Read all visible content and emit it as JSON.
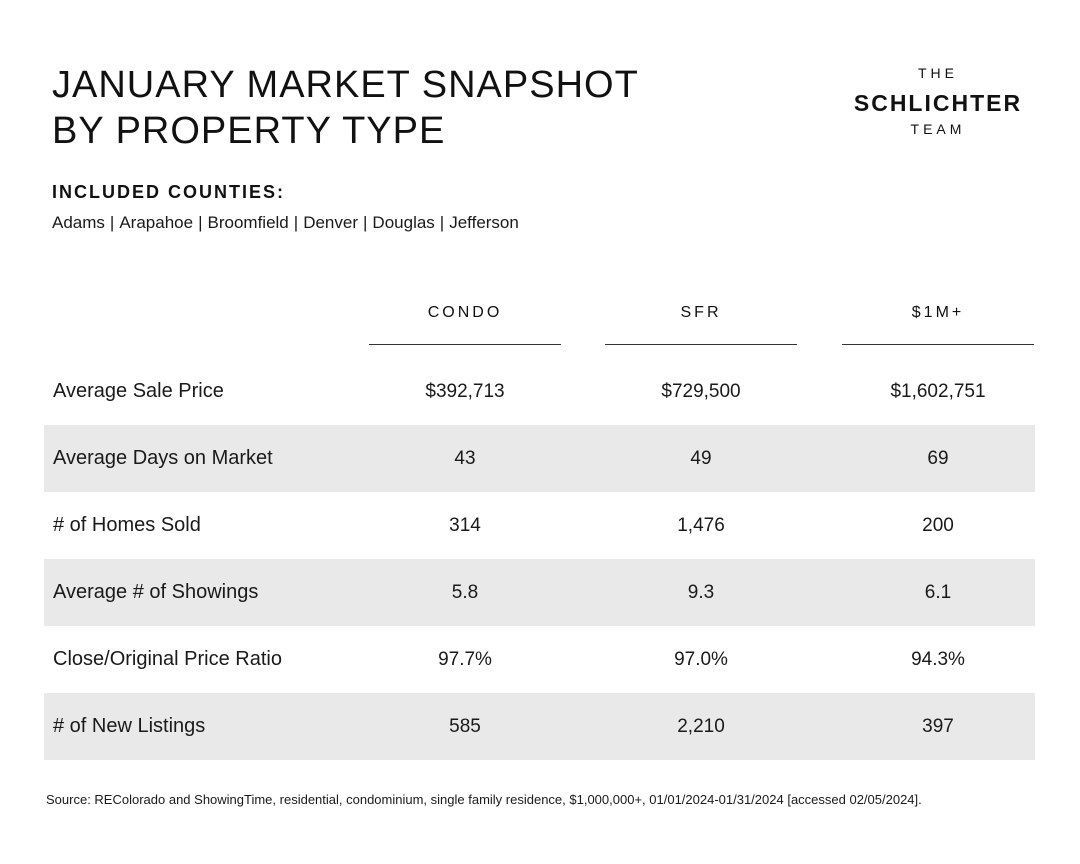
{
  "title": {
    "line1": "JANUARY MARKET SNAPSHOT",
    "line2": "BY PROPERTY TYPE"
  },
  "logo": {
    "the": "THE",
    "name": "SCHLICHTER",
    "team": "TEAM"
  },
  "counties": {
    "heading": "INCLUDED COUNTIES:",
    "items": [
      "Adams",
      "Arapahoe",
      "Broomfield",
      "Denver",
      "Douglas",
      "Jefferson"
    ],
    "separator": "|"
  },
  "table": {
    "columns": [
      "CONDO",
      "SFR",
      "$1M+"
    ],
    "rows": [
      {
        "label": "Average Sale Price",
        "values": [
          "$392,713",
          "$729,500",
          "$1,602,751"
        ]
      },
      {
        "label": "Average Days on Market",
        "values": [
          "43",
          "49",
          "69"
        ]
      },
      {
        "label": "# of Homes Sold",
        "values": [
          "314",
          "1,476",
          "200"
        ]
      },
      {
        "label": "Average # of Showings",
        "values": [
          "5.8",
          "9.3",
          "6.1"
        ]
      },
      {
        "label": "Close/Original Price Ratio",
        "values": [
          "97.7%",
          "97.0%",
          "94.3%"
        ]
      },
      {
        "label": "# of New Listings",
        "values": [
          "585",
          "2,210",
          "397"
        ]
      }
    ]
  },
  "source": "Source: REColorado and ShowingTime, residential, condominium, single family residence, $1,000,000+, 01/01/2024-01/31/2024 [accessed 02/05/2024].",
  "colors": {
    "text": "#1a1a1a",
    "row_shade": "#e9e9ea",
    "background": "#ffffff"
  }
}
